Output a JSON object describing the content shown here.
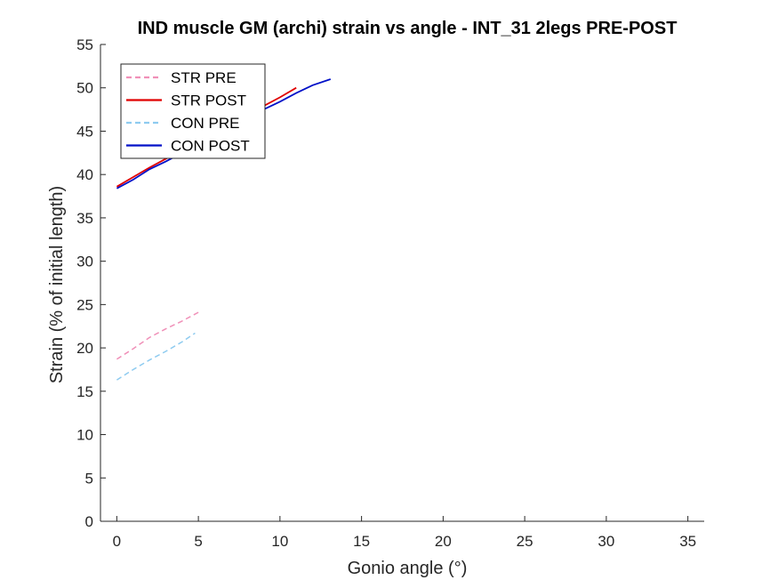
{
  "chart_data": {
    "type": "line",
    "title": "IND muscle GM (archi) strain vs angle - INT_31 2legs PRE-POST",
    "xlabel": "Gonio angle (°)",
    "ylabel": "Strain (% of initial length)",
    "xlim": [
      -1,
      36
    ],
    "ylim": [
      0,
      55
    ],
    "xticks": [
      0,
      5,
      10,
      15,
      20,
      25,
      30,
      35
    ],
    "yticks": [
      0,
      5,
      10,
      15,
      20,
      25,
      30,
      35,
      40,
      45,
      50,
      55
    ],
    "grid": false,
    "legend_position": "top-left",
    "series": [
      {
        "name": "STR PRE",
        "color": "#f090b8",
        "dash": "dashed",
        "x": [
          0,
          1,
          2,
          3,
          4,
          5
        ],
        "y": [
          18.7,
          19.9,
          21.2,
          22.2,
          23.1,
          24.1
        ]
      },
      {
        "name": "STR POST",
        "color": "#e00000",
        "dash": "solid",
        "x": [
          0,
          1,
          2,
          3,
          4,
          5,
          6,
          7,
          8,
          9,
          10,
          11
        ],
        "y": [
          38.6,
          39.7,
          40.8,
          41.8,
          42.8,
          43.9,
          44.9,
          45.9,
          46.9,
          47.9,
          48.9,
          50.0
        ]
      },
      {
        "name": "CON PRE",
        "color": "#8ecbf0",
        "dash": "dashed",
        "x": [
          0,
          1,
          2,
          3,
          4,
          4.8
        ],
        "y": [
          16.3,
          17.5,
          18.6,
          19.6,
          20.7,
          21.7
        ]
      },
      {
        "name": "CON POST",
        "color": "#0010c8",
        "dash": "solid",
        "x": [
          0,
          1,
          2,
          3,
          4,
          5,
          6,
          7,
          8,
          9,
          10,
          11,
          12,
          13.1
        ],
        "y": [
          38.4,
          39.4,
          40.6,
          41.5,
          42.5,
          43.6,
          44.5,
          45.5,
          46.6,
          47.5,
          48.4,
          49.4,
          50.3,
          51.0
        ]
      }
    ]
  }
}
